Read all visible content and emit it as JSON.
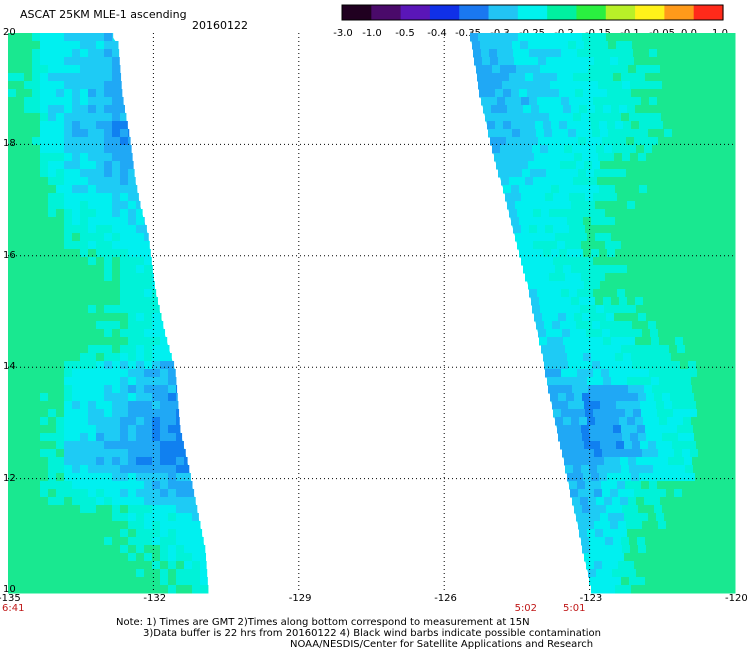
{
  "header": {
    "title": "ASCAT 25KM MLE-1 ascending",
    "date": "20160122"
  },
  "colorbar": {
    "labels": [
      "-3.0",
      "-1.0",
      "-0.5",
      "-0.4",
      "-0.35",
      "-0.3",
      "-0.25",
      "-0.2",
      "-0.15",
      "-0.1",
      "-0.05",
      "0.0",
      "1.0"
    ],
    "colors": [
      "#200020",
      "#4a0a6a",
      "#5a16b8",
      "#1030e8",
      "#1a78f0",
      "#22c4f4",
      "#00f2ee",
      "#00f0a0",
      "#2af040",
      "#b8f028",
      "#fff21a",
      "#ff9a1a",
      "#ff2a1a"
    ]
  },
  "map": {
    "lon_range": [
      -135,
      -120
    ],
    "lat_range": [
      10,
      20
    ],
    "x_ticks": [
      "-135",
      "-132",
      "-129",
      "-126",
      "-123",
      "-120"
    ],
    "y_ticks": [
      "20",
      "18",
      "16",
      "14",
      "12",
      "10"
    ],
    "palette": {
      "green": "#19e890",
      "teal": "#00f2d8",
      "cyan": "#00f0f0",
      "sky": "#1ecbf5",
      "blue": "#20a8f5",
      "deep_blue": "#1080f0"
    },
    "times": [
      {
        "text": "6:41",
        "lon": -135
      },
      {
        "text": "5:02",
        "lon": -124.3
      },
      {
        "text": "5:01",
        "lon": -123.3
      }
    ]
  },
  "footer": {
    "line1": "Note: 1) Times are GMT 2)Times along bottom correspond to measurement at 15N",
    "line2": "3)Data buffer is 22 hrs from 20160122 4) Black wind barbs indicate possible contamination",
    "line3": "NOAA/NESDIS/Center for Satellite Applications and Research"
  }
}
